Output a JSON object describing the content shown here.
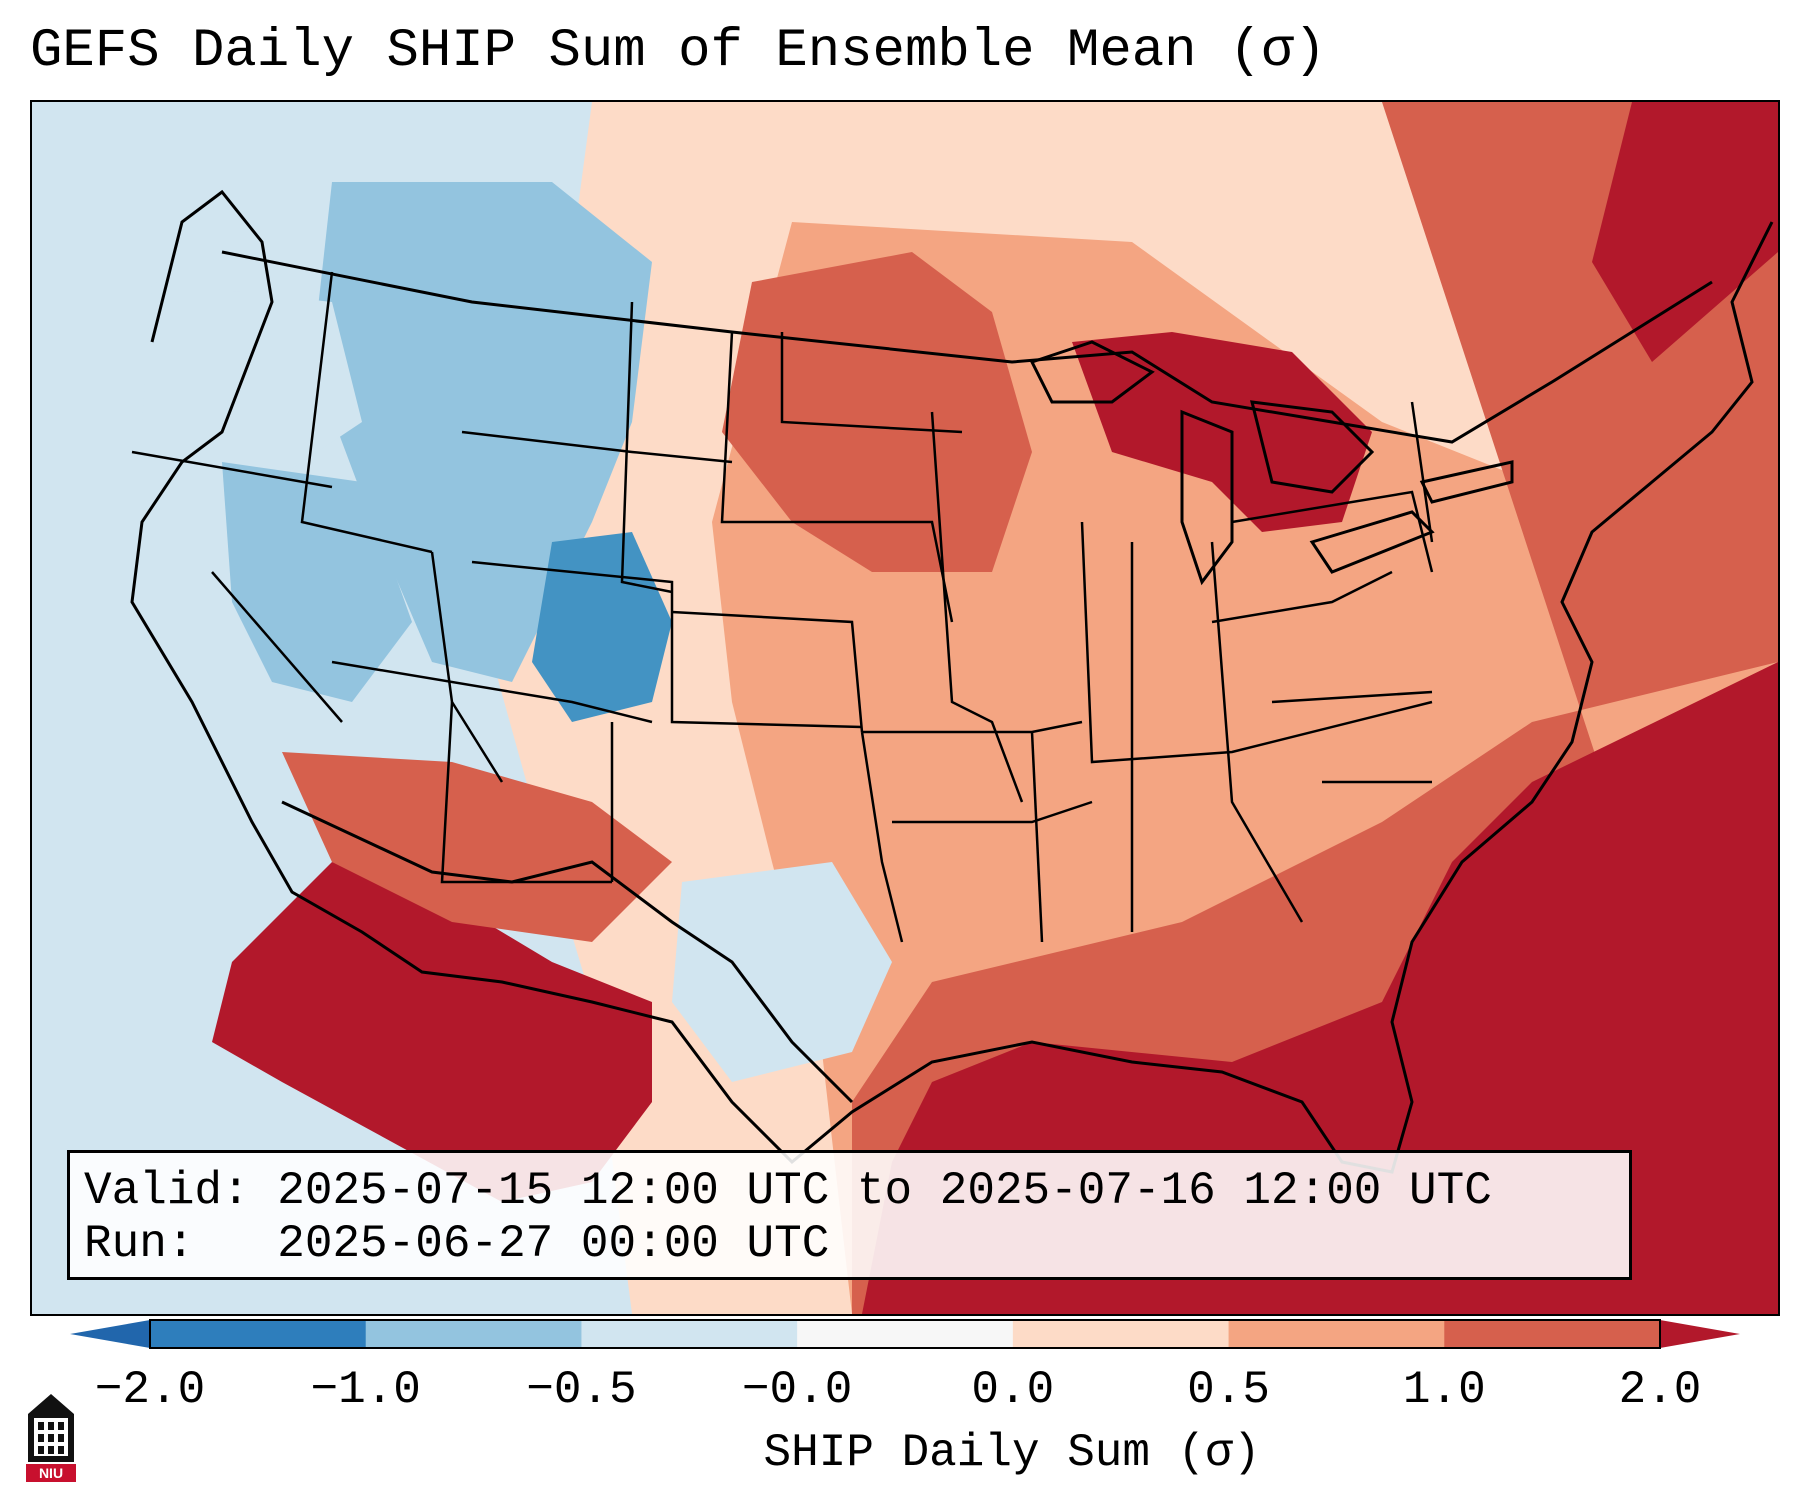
{
  "title": "GEFS Daily SHIP Sum of Ensemble Mean (σ)",
  "info": {
    "valid": "Valid: 2025-07-15 12:00 UTC to 2025-07-16 12:00 UTC",
    "run": "Run:   2025-06-27 00:00 UTC"
  },
  "colorbar": {
    "label": "SHIP Daily Sum (σ)",
    "ticks": [
      "−2.0",
      "−1.0",
      "−0.5",
      "−0.0",
      "0.0",
      "0.5",
      "1.0",
      "2.0"
    ],
    "colors": [
      "#2e7ebc",
      "#93c4df",
      "#d1e5f0",
      "#f7f7f7",
      "#fddbc7",
      "#f4a582",
      "#d6604d",
      "#b2182b"
    ],
    "extend_low_color": "#2166ac",
    "extend_high_color": "#b2182b"
  },
  "map": {
    "projection": "Lambert conformal, CONUS",
    "field": "SHIP daily sum anomaly (σ)",
    "ocean_west_color": "#d1e5f0",
    "ocean_east_color": "#b2182b"
  },
  "logo": {
    "text": "NIU",
    "icon": "niu-logo-icon"
  }
}
